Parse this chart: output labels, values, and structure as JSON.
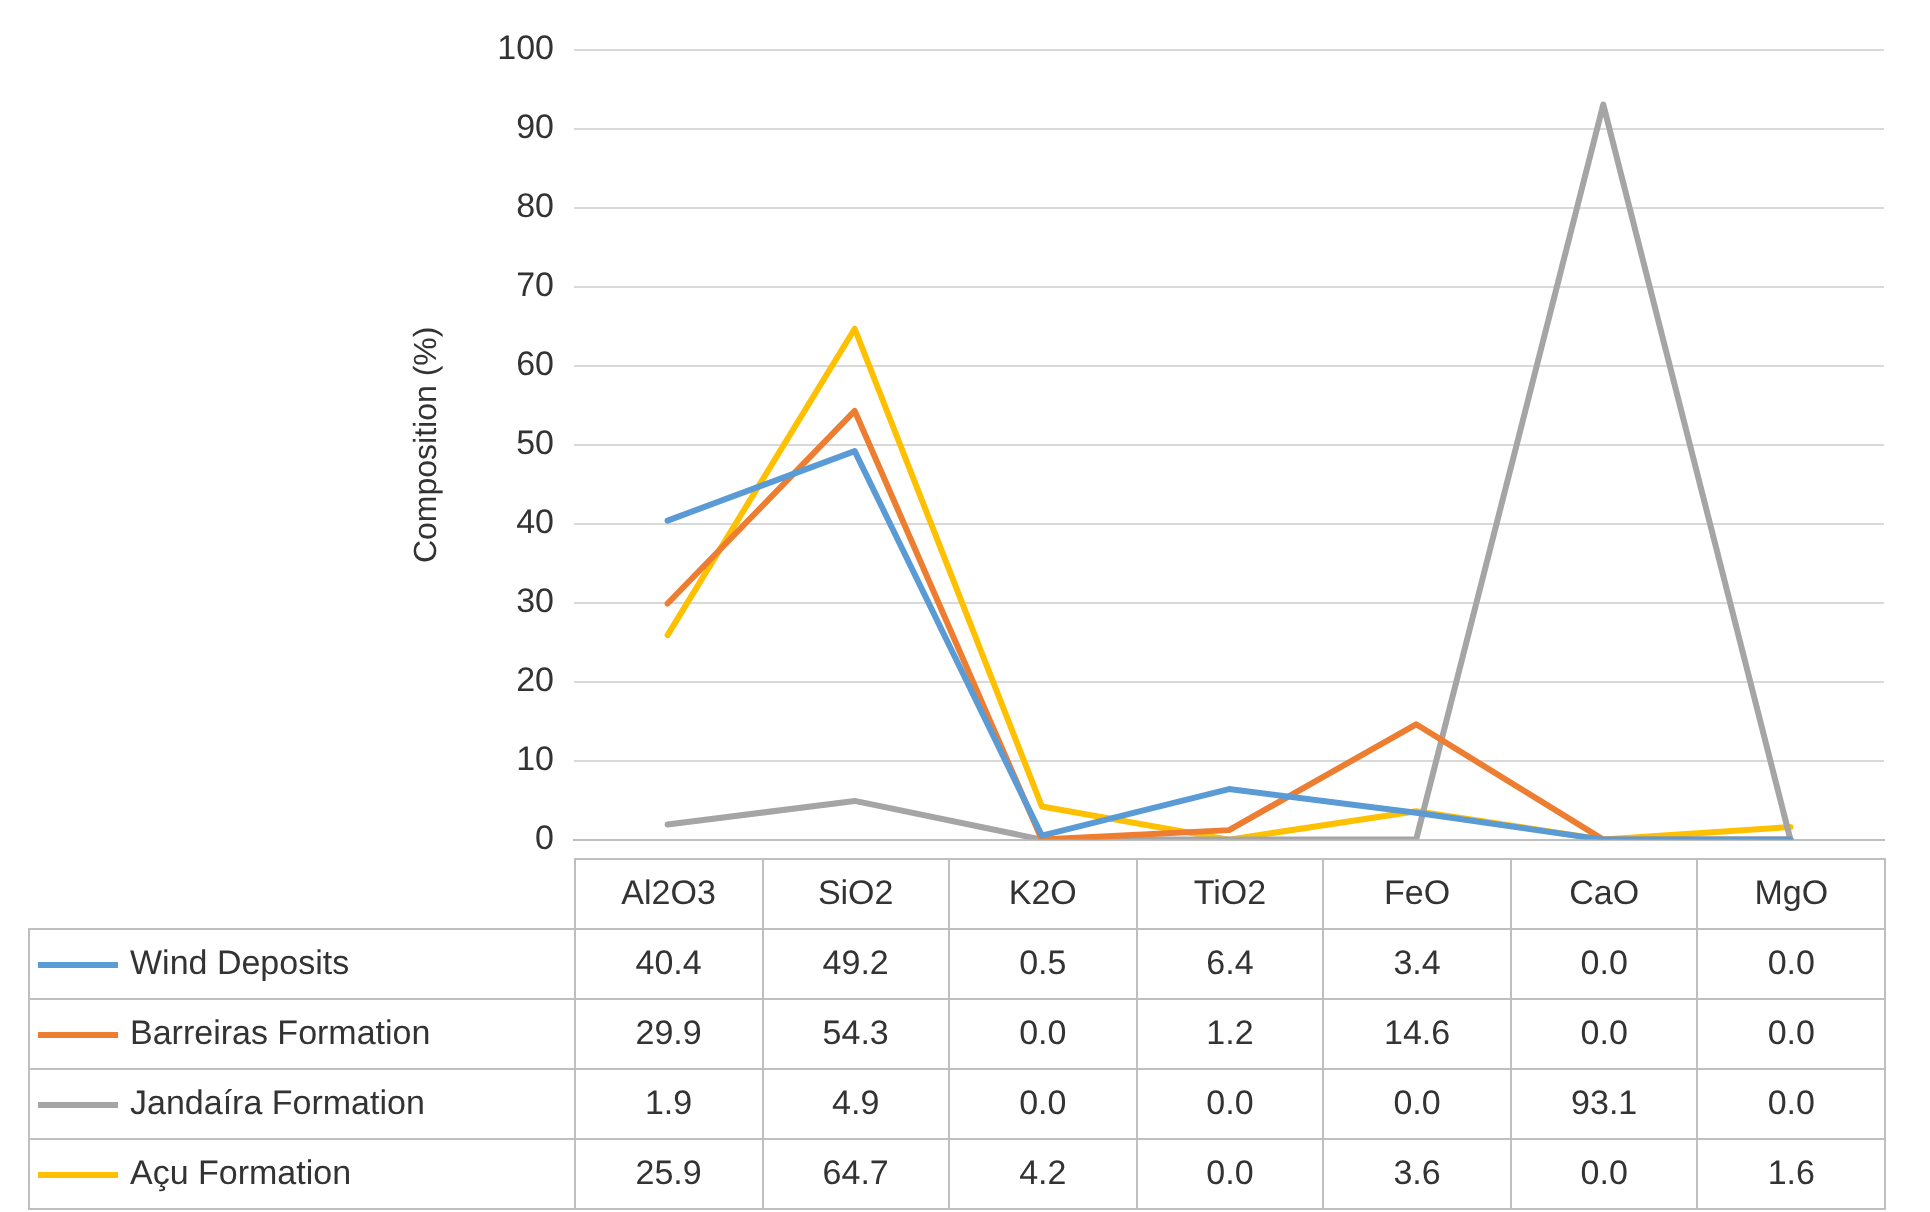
{
  "chart_data": {
    "type": "line",
    "ylabel": "Composition (%)",
    "categories": [
      "Al2O3",
      "SiO2",
      "K2O",
      "TiO2",
      "FeO",
      "CaO",
      "MgO"
    ],
    "series": [
      {
        "name": "Wind Deposits",
        "color": "#5b9bd5",
        "values": [
          40.4,
          49.2,
          0.5,
          6.4,
          3.4,
          0.0,
          0.0
        ],
        "value_labels": [
          "40.4",
          "49.2",
          "0.5",
          "6.4",
          "3.4",
          "0.0",
          "0.0"
        ]
      },
      {
        "name": "Barreiras Formation",
        "color": "#ed7d31",
        "values": [
          29.9,
          54.3,
          0.0,
          1.2,
          14.6,
          0.0,
          0.0
        ],
        "value_labels": [
          "29.9",
          "54.3",
          "0.0",
          "1.2",
          "14.6",
          "0.0",
          "0.0"
        ]
      },
      {
        "name": "Jandaíra Formation",
        "color": "#a5a5a5",
        "values": [
          1.9,
          4.9,
          0.0,
          0.0,
          0.0,
          93.1,
          0.0
        ],
        "value_labels": [
          "1.9",
          "4.9",
          "0.0",
          "0.0",
          "0.0",
          "93.1",
          "0.0"
        ]
      },
      {
        "name": "Açu Formation",
        "color": "#ffc000",
        "values": [
          25.9,
          64.7,
          4.2,
          0.0,
          3.6,
          0.0,
          1.6
        ],
        "value_labels": [
          "25.9",
          "64.7",
          "4.2",
          "0.0",
          "3.6",
          "0.0",
          "1.6"
        ]
      }
    ],
    "ylim": [
      0,
      100
    ],
    "yticks": [
      0,
      10,
      20,
      30,
      40,
      50,
      60,
      70,
      80,
      90,
      100
    ],
    "grid": "y",
    "legend": "bottom",
    "marker": "none",
    "line_style": "solid"
  }
}
